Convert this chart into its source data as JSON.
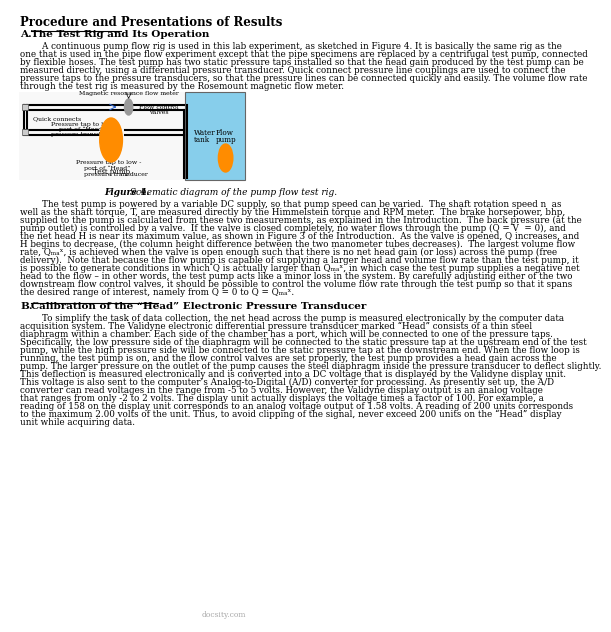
{
  "title": "Procedure and Presentations of Results",
  "section_a_label": "A.",
  "section_a_title": "The Test Rig and Its Operation",
  "section_b_label": "B.",
  "section_b_title": "Calibration of the “Head” Electronic Pressure Transducer",
  "figure_caption_bold": "Figure 4.",
  "figure_caption_rest": " Schematic diagram of the pump flow test rig.",
  "watermark": "docsity.com",
  "bg_color": "#ffffff",
  "pipe_color": "#000000",
  "pump_color": "#FF8C00",
  "tank_color": "#87CEEB",
  "meter_color": "#999999",
  "para_a1_lines": [
    "        A continuous pump flow rig is used in this lab experiment, as sketched in Figure 4. It is basically the same rig as the",
    "one that is used in the pipe flow experiment except that the pipe specimens are replaced by a centrifugal test pump, connected",
    "by flexible hoses. The test pump has two static pressure taps installed so that the head gain produced by the test pump can be",
    "measured directly, using a differential pressure transducer. Quick connect pressure line couplings are used to connect the",
    "pressure taps to the pressure transducers, so that the pressure lines can be connected quickly and easily. The volume flow rate",
    "through the test rig is measured by the Rosemount magnetic flow meter."
  ],
  "para_a2_lines": [
    "        The test pump is powered by a variable DC supply, so that pump speed can be varied.  The shaft rotation speed n  as",
    "well as the shaft torque, T, are measured directly by the Himmelstein torque and RPM meter.  The brake horsepower, bhp,",
    "supplied to the pump is calculated from these two measurements, as explained in the Introduction.  The back pressure (at the",
    "pump outlet) is controlled by a valve.  If the valve is closed completely, no water flows through the pump (Q = V  = 0), and",
    "the net head H is near its maximum value, as shown in Figure 3 of the Introduction.  As the valve is opened, Q increases, and",
    "H begins to decrease, (the column height difference between the two manometer tubes decreases).  The largest volume flow",
    "rate, Qₘₐˣ, is achieved when the valve is open enough such that there is no net head gain (or loss) across the pump (free",
    "delivery).  Note that because the flow pump is capable of supplying a larger head and volume flow rate than the test pump, it",
    "is possible to generate conditions in which Q is actually larger than Qₘₐˣ, in which case the test pump supplies a negative net",
    "head to the flow – in other words, the test pump acts like a minor loss in the system. By carefully adjusting either of the two",
    "downstream flow control valves, it should be possible to control the volume flow rate through the test pump so that it spans",
    "the desired range of interest, namely from Q = 0 to Q = Qₘₐˣ."
  ],
  "para_b1_lines": [
    "        To simplify the task of data collection, the net head across the pump is measured electronically by the computer data",
    "acquisition system. The Validyne electronic differential pressure transducer marked “Head” consists of a thin steel",
    "diaphragm within a chamber. Each side of the chamber has a port, which will be connected to one of the pressure taps.",
    "Specifically, the low pressure side of the diaphragm will be connected to the static pressure tap at the upstream end of the test",
    "pump, while the high pressure side will be connected to the static pressure tap at the downstream end. When the flow loop is",
    "running, the test pump is on, and the flow control valves are set properly, the test pump provides a head gain across the",
    "pump. The larger pressure on the outlet of the pump causes the steel diaphragm inside the pressure transducer to deflect slightly.",
    "This deflection is measured electronically and is converted into a DC voltage that is displayed by the Validyne display unit.",
    "This voltage is also sent to the computer’s Analog-to-Digital (A/D) converter for processing. As presently set up, the A/D",
    "converter can read voltages in the range from -5 to 5 volts. However, the Validyne display output is an analog voltage",
    "that ranges from only -2 to 2 volts. The display unit actually displays the voltage times a factor of 100. For example, a",
    "reading of 158 on the display unit corresponds to an analog voltage output of 1.58 volts. A reading of 200 units corresponds",
    "to the maximum 2.00 volts of the unit. Thus, to avoid clipping of the signal, never exceed 200 units on the “Head” display",
    "unit while acquiring data."
  ]
}
